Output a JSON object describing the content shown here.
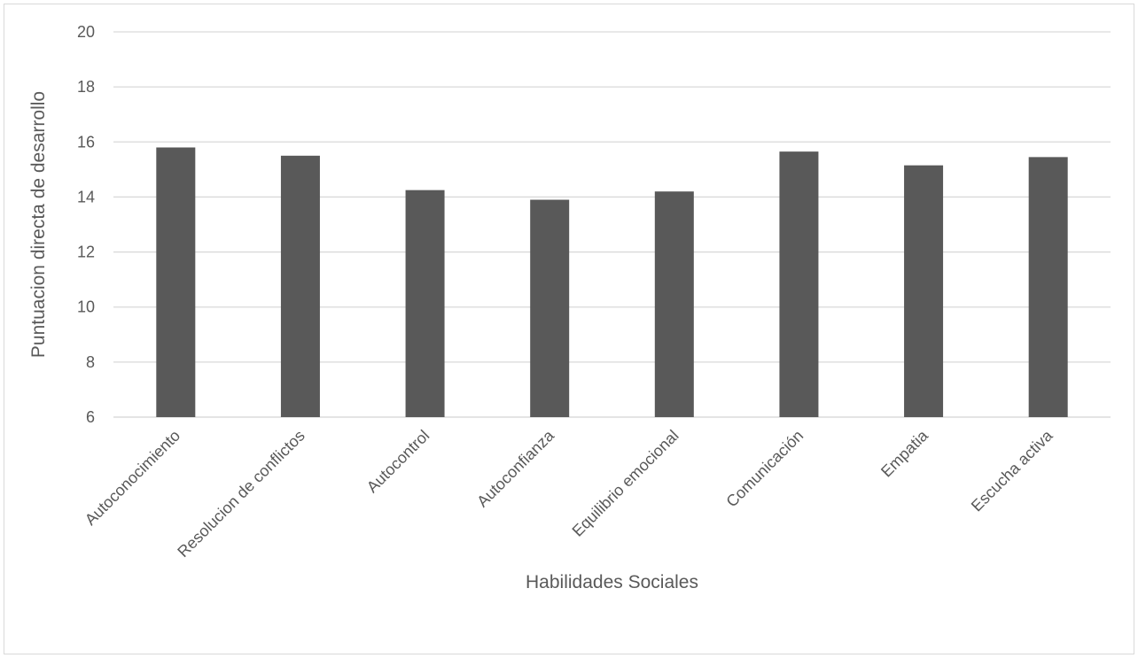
{
  "chart_data": {
    "type": "bar",
    "title": "",
    "xlabel": "Habilidades Sociales",
    "ylabel": "Puntuacion directa de desarrollo",
    "categories": [
      "Autoconocimiento",
      "Resolucion de conflictos",
      "Autocontrol",
      "Autoconfianza",
      "Equilibrio emocional",
      "Comunicación",
      "Empatia",
      "Escucha activa"
    ],
    "values": [
      15.8,
      15.5,
      14.25,
      13.9,
      14.2,
      15.65,
      15.15,
      15.45
    ],
    "ylim": [
      6,
      20
    ],
    "yticks": [
      "6",
      "8",
      "10",
      "12",
      "14",
      "16",
      "18",
      "20"
    ],
    "grid": true,
    "legend": "none",
    "bar_color": "#595959",
    "grid_color": "#d9d9d9"
  }
}
